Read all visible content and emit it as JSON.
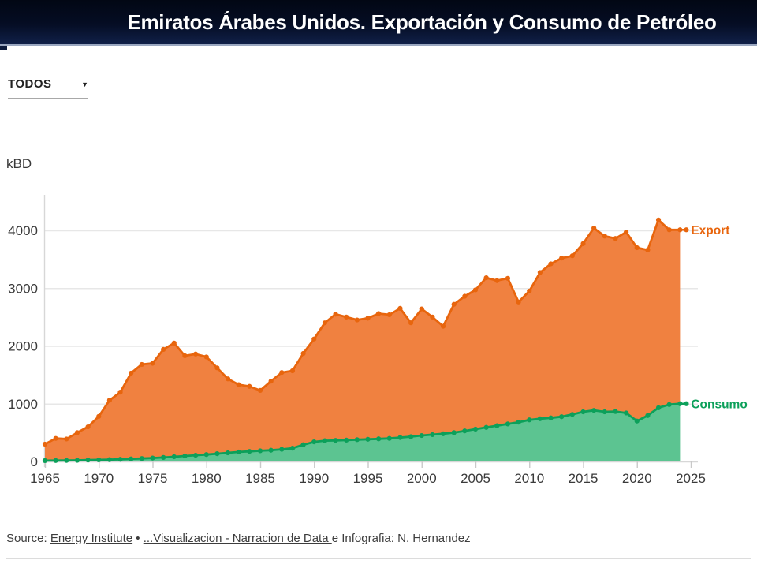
{
  "header": {
    "title": "Emiratos Árabes Unidos. Exportación y Consumo de Petróleo",
    "bg_color_top": "#020714",
    "bg_color_bottom": "#102048"
  },
  "filter": {
    "value": "TODOS",
    "caret_icon": "chevron-down"
  },
  "chart": {
    "unit": "kBD"
  },
  "chart_data": {
    "type": "area",
    "stacked": true,
    "note": "orange band is plotted between the Consumo line and the Export top line; green band fills Consumo down to zero",
    "ylabel": "kBD",
    "xlabel": "",
    "grid": "horizontal",
    "legend": "end-of-line labels",
    "ylim": [
      0,
      4400
    ],
    "xlim": [
      1965,
      2025
    ],
    "yticks": [
      0,
      1000,
      2000,
      3000,
      4000
    ],
    "xticks": [
      1965,
      1970,
      1975,
      1980,
      1985,
      1990,
      1995,
      2000,
      2005,
      2010,
      2015,
      2020,
      2025
    ],
    "x": [
      1965,
      1966,
      1967,
      1968,
      1969,
      1970,
      1971,
      1972,
      1973,
      1974,
      1975,
      1976,
      1977,
      1978,
      1979,
      1980,
      1981,
      1982,
      1983,
      1984,
      1985,
      1986,
      1987,
      1988,
      1989,
      1990,
      1991,
      1992,
      1993,
      1994,
      1995,
      1996,
      1997,
      1998,
      1999,
      2000,
      2001,
      2002,
      2003,
      2004,
      2005,
      2006,
      2007,
      2008,
      2009,
      2010,
      2011,
      2012,
      2013,
      2014,
      2015,
      2016,
      2017,
      2018,
      2019,
      2020,
      2021,
      2022,
      2023,
      2024
    ],
    "series": [
      {
        "name": "Export",
        "line_color": "#E8650D",
        "fill_color": "#F08140",
        "values": [
          300,
          400,
          390,
          500,
          600,
          780,
          1060,
          1200,
          1530,
          1680,
          1700,
          1940,
          2050,
          1830,
          1860,
          1810,
          1620,
          1430,
          1330,
          1300,
          1230,
          1390,
          1540,
          1570,
          1870,
          2120,
          2400,
          2550,
          2500,
          2450,
          2480,
          2560,
          2540,
          2650,
          2400,
          2640,
          2500,
          2340,
          2720,
          2860,
          2970,
          3180,
          3130,
          3170,
          2760,
          2950,
          3270,
          3420,
          3520,
          3560,
          3770,
          4040,
          3900,
          3860,
          3970,
          3700,
          3660,
          4180,
          4010,
          4010
        ]
      },
      {
        "name": "Consumo",
        "line_color": "#0CA05A",
        "fill_color": "#5CC491",
        "values": [
          15,
          16,
          18,
          20,
          24,
          28,
          32,
          38,
          45,
          52,
          60,
          70,
          82,
          95,
          108,
          120,
          135,
          150,
          165,
          175,
          185,
          195,
          210,
          230,
          290,
          340,
          360,
          365,
          370,
          378,
          385,
          392,
          400,
          415,
          430,
          450,
          465,
          480,
          500,
          530,
          560,
          590,
          620,
          650,
          680,
          720,
          740,
          755,
          775,
          815,
          860,
          885,
          860,
          865,
          840,
          700,
          795,
          930,
          985,
          1000
        ]
      }
    ]
  },
  "source": {
    "prefix": "Source: ",
    "link1": "Energy Institute",
    "separator": " • ",
    "link2": "...Visualizacion - Narracion de Data ",
    "suffix": "e Infografia: N. Hernandez"
  }
}
